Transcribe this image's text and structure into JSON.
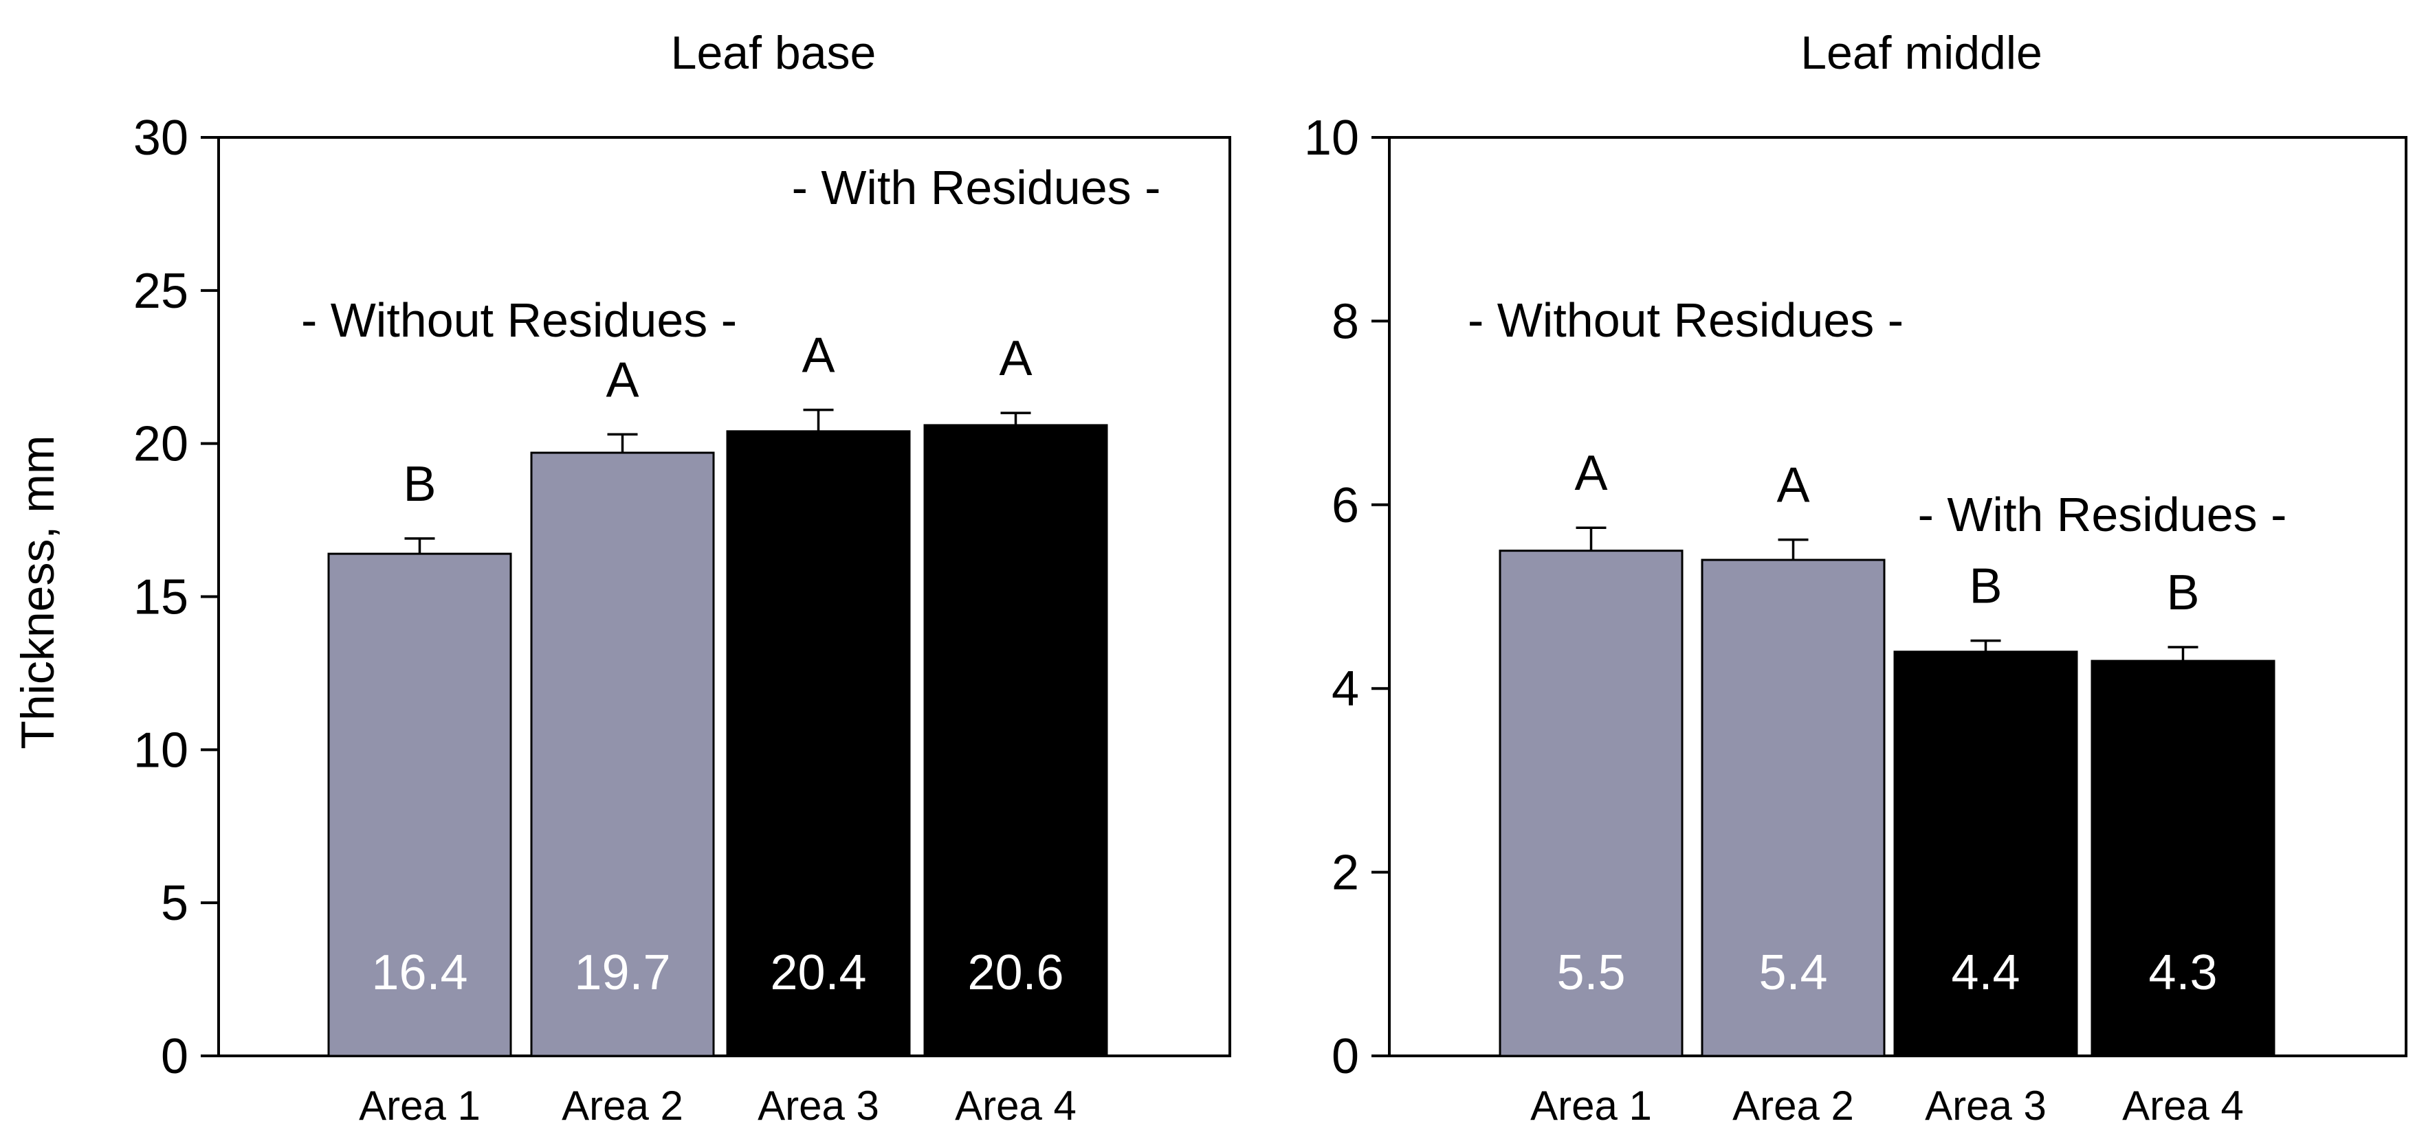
{
  "y_axis_label": "Thickness, mm",
  "colors": {
    "without_residues": "#9293ab",
    "with_residues": "#000000",
    "axis": "#000000"
  },
  "chart_data": [
    {
      "type": "bar",
      "title": "Leaf base",
      "ylabel": "Thickness, mm",
      "xlabel": "",
      "ylim": [
        0,
        30
      ],
      "yticks": [
        0,
        5,
        10,
        15,
        20,
        25,
        30
      ],
      "categories": [
        "Area 1",
        "Area 2",
        "Area 3",
        "Area 4"
      ],
      "values": [
        16.4,
        19.7,
        20.4,
        20.6
      ],
      "errors": [
        0.5,
        0.6,
        0.7,
        0.4
      ],
      "value_labels": [
        "16.4",
        "19.7",
        "20.4",
        "20.6"
      ],
      "letters": [
        "B",
        "A",
        "A",
        "A"
      ],
      "groups": [
        "without",
        "without",
        "with",
        "with"
      ],
      "group_labels": {
        "without": "- Without Residues -",
        "with": "- With Residues -"
      }
    },
    {
      "type": "bar",
      "title": "Leaf middle",
      "ylabel": "",
      "xlabel": "",
      "ylim": [
        0,
        10
      ],
      "yticks": [
        0,
        2,
        4,
        6,
        8,
        10
      ],
      "categories": [
        "Area 1",
        "Area 2",
        "Area 3",
        "Area 4"
      ],
      "values": [
        5.5,
        5.4,
        4.4,
        4.3
      ],
      "errors": [
        0.25,
        0.22,
        0.12,
        0.15
      ],
      "value_labels": [
        "5.5",
        "5.4",
        "4.4",
        "4.3"
      ],
      "letters": [
        "A",
        "A",
        "B",
        "B"
      ],
      "groups": [
        "without",
        "without",
        "with",
        "with"
      ],
      "group_labels": {
        "without": "- Without Residues -",
        "with": "- With Residues -"
      }
    }
  ]
}
